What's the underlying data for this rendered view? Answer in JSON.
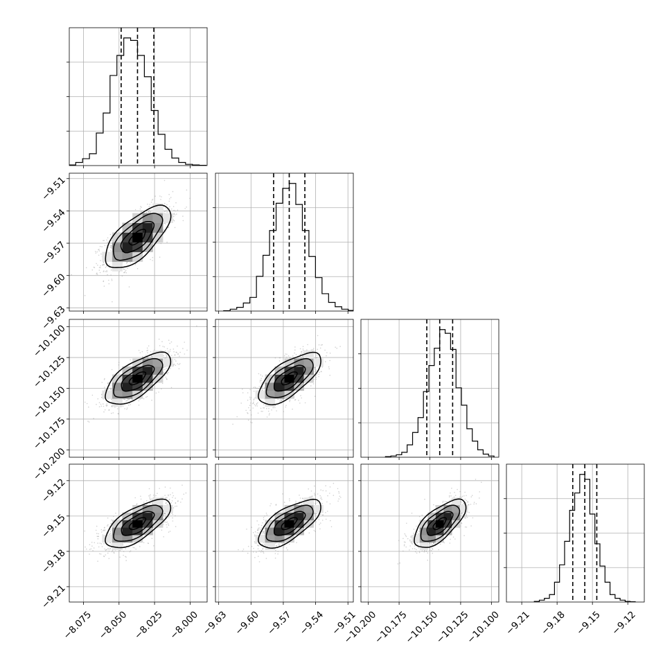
{
  "chart_data": {
    "type": "corner",
    "grid": true,
    "parameters": [
      {
        "range": [
          -8.085,
          -7.988
        ],
        "mean": -8.037,
        "sigma": 0.0115,
        "quantiles": [
          -8.0485,
          -8.037,
          -8.0255
        ],
        "ticks": [
          {
            "value": -8.075,
            "label": "−8.075"
          },
          {
            "value": -8.05,
            "label": "−8.050"
          },
          {
            "value": -8.025,
            "label": "−8.025"
          },
          {
            "value": -8.0,
            "label": "−8.000"
          }
        ],
        "hist_counts": [
          0.5,
          2.5,
          5.5,
          9.5,
          26,
          42,
          72,
          88,
          102,
          100,
          88,
          71,
          44,
          25,
          13,
          6,
          2.5,
          1,
          0.5,
          0.2
        ]
      },
      {
        "range": [
          -9.633,
          -9.505
        ],
        "mean": -9.5645,
        "sigma": 0.0145,
        "quantiles": [
          -9.579,
          -9.5645,
          -9.55
        ],
        "ticks": [
          {
            "value": -9.63,
            "label": "−9.63"
          },
          {
            "value": -9.6,
            "label": "−9.60"
          },
          {
            "value": -9.57,
            "label": "−9.57"
          },
          {
            "value": -9.54,
            "label": "−9.54"
          },
          {
            "value": -9.51,
            "label": "−9.51"
          }
        ],
        "hist_counts": [
          0.3,
          1.5,
          3,
          6.5,
          11,
          28,
          45,
          65,
          87,
          99,
          103,
          86,
          65,
          44,
          27,
          14,
          7,
          3.5,
          1.5,
          0.5
        ]
      },
      {
        "range": [
          -10.206,
          -10.094
        ],
        "mean": -10.142,
        "sigma": 0.0105,
        "quantiles": [
          -10.1525,
          -10.142,
          -10.1315
        ],
        "ticks": [
          {
            "value": -10.2,
            "label": "−10.200"
          },
          {
            "value": -10.175,
            "label": "−10.175"
          },
          {
            "value": -10.15,
            "label": "−10.150"
          },
          {
            "value": -10.125,
            "label": "−10.125"
          },
          {
            "value": -10.1,
            "label": "−10.100"
          }
        ],
        "hist_counts": [
          0.5,
          1,
          2,
          4,
          10,
          20,
          32,
          53,
          74,
          88,
          103,
          100,
          87,
          56,
          42,
          23,
          13,
          6,
          2.5,
          1
        ]
      },
      {
        "range": [
          -9.223,
          -9.106
        ],
        "mean": -9.1565,
        "sigma": 0.0102,
        "quantiles": [
          -9.1667,
          -9.1565,
          -9.1463
        ],
        "ticks": [
          {
            "value": -9.21,
            "label": "−9.21"
          },
          {
            "value": -9.18,
            "label": "−9.18"
          },
          {
            "value": -9.15,
            "label": "−9.15"
          },
          {
            "value": -9.12,
            "label": "−9.12"
          }
        ],
        "hist_counts": [
          0.5,
          1.5,
          3,
          6,
          16,
          30,
          49,
          74,
          88,
          103,
          99,
          71,
          47,
          29,
          16,
          6,
          3,
          1.5,
          0.5,
          0.2
        ]
      }
    ],
    "correlation": 0.68,
    "contour_levels": [
      "0.5",
      "1.0",
      "1.5",
      "2.0"
    ]
  }
}
